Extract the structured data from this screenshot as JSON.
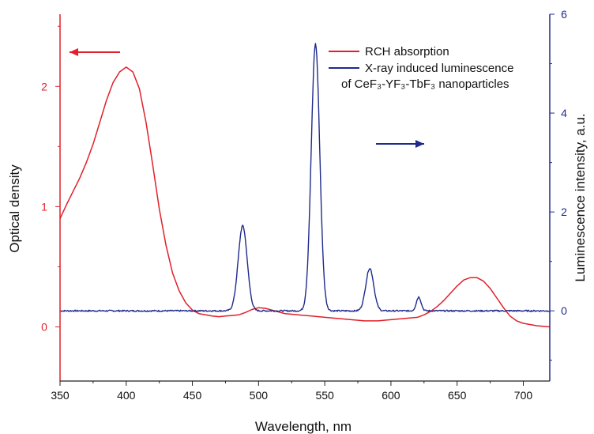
{
  "chart_data": {
    "type": "line",
    "title": "",
    "xlabel": "Wavelength, nm",
    "ylabel_left": "Optical density",
    "ylabel_right": "Luminescence intensity, a.u.",
    "xlim": [
      350,
      720
    ],
    "ylim_left": [
      -0.45,
      2.6
    ],
    "ylim_right": [
      -1.42,
      6
    ],
    "x_ticks": [
      350,
      400,
      450,
      500,
      550,
      600,
      650,
      700
    ],
    "left_ticks": [
      0,
      1,
      2
    ],
    "right_ticks": [
      0,
      2,
      4,
      6
    ],
    "grid": false,
    "legend": {
      "position": "top-right",
      "entries": [
        {
          "label": "RCH absorption",
          "color": "#e0202a"
        },
        {
          "label_line1": "X-ray induced luminescence",
          "label_line2": "of CeF₃-YF₃-TbF₃ nanoparticles",
          "color": "#1f2a8a"
        }
      ]
    },
    "annotations": [
      {
        "type": "arrow",
        "direction": "left",
        "axis": "left",
        "color": "#e0202a"
      },
      {
        "type": "arrow",
        "direction": "right",
        "axis": "right",
        "color": "#1f2a8a"
      }
    ],
    "series": [
      {
        "name": "RCH absorption",
        "axis": "left",
        "color": "#e0202a",
        "x": [
          350,
          355,
          360,
          365,
          370,
          375,
          380,
          385,
          390,
          395,
          400,
          405,
          410,
          415,
          420,
          425,
          430,
          435,
          440,
          445,
          450,
          455,
          460,
          465,
          470,
          475,
          480,
          485,
          490,
          495,
          500,
          505,
          510,
          515,
          520,
          530,
          540,
          550,
          560,
          570,
          580,
          590,
          600,
          610,
          620,
          625,
          630,
          635,
          640,
          645,
          650,
          655,
          660,
          665,
          670,
          675,
          680,
          685,
          690,
          695,
          700,
          705,
          710,
          715,
          720
        ],
        "y": [
          0.9,
          1.02,
          1.13,
          1.24,
          1.37,
          1.52,
          1.7,
          1.88,
          2.03,
          2.12,
          2.16,
          2.12,
          1.98,
          1.7,
          1.35,
          0.98,
          0.68,
          0.45,
          0.3,
          0.2,
          0.14,
          0.11,
          0.1,
          0.09,
          0.085,
          0.09,
          0.095,
          0.1,
          0.12,
          0.145,
          0.16,
          0.155,
          0.14,
          0.125,
          0.11,
          0.1,
          0.09,
          0.08,
          0.07,
          0.06,
          0.05,
          0.05,
          0.06,
          0.07,
          0.08,
          0.1,
          0.13,
          0.17,
          0.22,
          0.28,
          0.34,
          0.39,
          0.41,
          0.41,
          0.38,
          0.32,
          0.24,
          0.16,
          0.09,
          0.05,
          0.03,
          0.02,
          0.01,
          0.005,
          0.0
        ]
      },
      {
        "name": "X-ray induced luminescence of CeF3-YF3-TbF3 nanoparticles",
        "axis": "right",
        "color": "#1f2a8a",
        "peaks": [
          {
            "center": 488,
            "height": 1.72,
            "width": 3.4
          },
          {
            "center": 543,
            "height": 5.4,
            "width": 3.2
          },
          {
            "center": 584,
            "height": 0.86,
            "width": 3.0
          },
          {
            "center": 621,
            "height": 0.28,
            "width": 1.8
          }
        ],
        "baseline": 0.0,
        "noise": 0.03
      }
    ]
  }
}
